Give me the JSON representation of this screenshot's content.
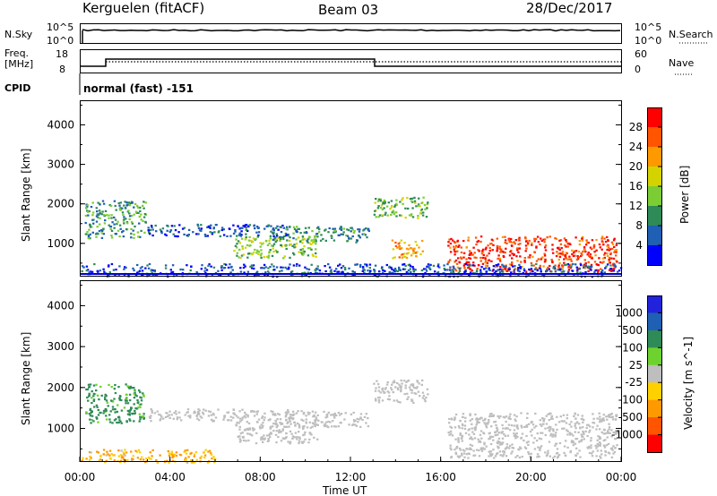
{
  "header": {
    "station": "Kerguelen (fitACF)",
    "beam": "Beam 03",
    "date": "28/Dec/2017"
  },
  "panels": {
    "noise": {
      "left_label": "N.Sky",
      "right_label": "N.Search",
      "left_ticks": [
        "10^5",
        "10^0"
      ],
      "right_ticks": [
        "10^5",
        "10^0"
      ]
    },
    "freq": {
      "left_label_line1": "Freq.",
      "left_label_line2": "[MHz]",
      "right_label": "Nave",
      "left_ticks": [
        "18",
        "8"
      ],
      "right_ticks": [
        "60",
        "0"
      ]
    },
    "cpid": {
      "label": "CPID",
      "value": "normal (fast) -151"
    }
  },
  "chart_data": [
    {
      "type": "heatmap",
      "name": "power",
      "ylabel": "Slant Range [km]",
      "yticks": [
        "1000",
        "2000",
        "3000",
        "4000"
      ],
      "ylim": [
        180,
        4600
      ],
      "xlim": [
        0,
        24
      ],
      "colorbar_label": "Power [dB]",
      "colorbar_ticks": [
        "4",
        "8",
        "12",
        "16",
        "20",
        "24",
        "28"
      ],
      "colorbar_colors": [
        "#0000ff",
        "#1f5fb4",
        "#2e8b57",
        "#7ccd33",
        "#d4d300",
        "#ff9900",
        "#ff5500",
        "#ff0000"
      ],
      "regions": [
        {
          "t0": 0.2,
          "t1": 2.9,
          "r0": 1150,
          "r1": 2100,
          "level": 10
        },
        {
          "t0": 3.0,
          "t1": 9.5,
          "r0": 1200,
          "r1": 1500,
          "level": 6
        },
        {
          "t0": 6.8,
          "t1": 10.5,
          "r0": 650,
          "r1": 1200,
          "level": 14
        },
        {
          "t0": 8.5,
          "t1": 12.8,
          "r0": 1050,
          "r1": 1450,
          "level": 9
        },
        {
          "t0": 13.0,
          "t1": 15.4,
          "r0": 1650,
          "r1": 2200,
          "level": 13
        },
        {
          "t0": 13.7,
          "t1": 15.2,
          "r0": 650,
          "r1": 1100,
          "level": 22
        },
        {
          "t0": 16.3,
          "t1": 23.8,
          "r0": 300,
          "r1": 1200,
          "level": 28
        },
        {
          "t0": 0.0,
          "t1": 24.0,
          "r0": 180,
          "r1": 500,
          "level": 5
        }
      ]
    },
    {
      "type": "heatmap",
      "name": "velocity",
      "xlabel": "Time UT",
      "xticks": [
        "00:00",
        "04:00",
        "08:00",
        "12:00",
        "16:00",
        "20:00",
        "00:00"
      ],
      "ylabel": "Slant Range [km]",
      "yticks": [
        "1000",
        "2000",
        "3000",
        "4000"
      ],
      "ylim": [
        180,
        4600
      ],
      "xlim": [
        0,
        24
      ],
      "colorbar_label": "Velocity [m s^-1]",
      "colorbar_ticks": [
        "1000",
        "500",
        "100",
        "25",
        "-25",
        "-100",
        "-500",
        "-1000"
      ],
      "colorbar_colors": [
        "#2222dd",
        "#1f5fb4",
        "#2e8b57",
        "#6ed22e",
        "#bebebe",
        "#ffd000",
        "#ff9900",
        "#ff5500",
        "#ff0000"
      ],
      "regions": [
        {
          "t0": 0.2,
          "t1": 2.9,
          "r0": 1150,
          "r1": 2100,
          "level": 200
        },
        {
          "t0": 3.0,
          "t1": 9.5,
          "r0": 1200,
          "r1": 1500,
          "level": 0
        },
        {
          "t0": 6.8,
          "t1": 10.5,
          "r0": 650,
          "r1": 1200,
          "level": 0
        },
        {
          "t0": 8.5,
          "t1": 12.8,
          "r0": 1050,
          "r1": 1450,
          "level": 0
        },
        {
          "t0": 13.0,
          "t1": 15.4,
          "r0": 1650,
          "r1": 2200,
          "level": 0
        },
        {
          "t0": 16.3,
          "t1": 23.8,
          "r0": 300,
          "r1": 1400,
          "level": 0
        },
        {
          "t0": 0.0,
          "t1": 6.0,
          "r0": 180,
          "r1": 500,
          "level": -100
        }
      ]
    }
  ]
}
